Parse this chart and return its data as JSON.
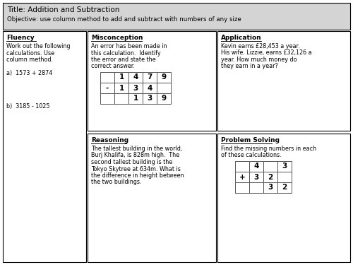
{
  "title_line1": "Title: Addition and Subtraction",
  "title_line2": "Objective: use column method to add and subtract with numbers of any size",
  "header_bg": "#d4d4d4",
  "cell_bg": "#ffffff",
  "border_color": "#000000",
  "fluency_header": "Fluency",
  "fluency_body_lines": [
    "Work out the following",
    "calculations. Use",
    "column method.",
    "",
    "a)  1573 + 2874",
    "",
    "",
    "",
    "",
    "b)  3185 - 1025"
  ],
  "misconception_header": "Misconception",
  "misconception_body_lines": [
    "An error has been made in",
    "this calculation.  Identify",
    "the error and state the",
    "correct answer."
  ],
  "misconception_table": {
    "rows": [
      [
        "",
        "1",
        "4",
        "7",
        "9"
      ],
      [
        "-",
        "1",
        "3",
        "4",
        ""
      ],
      [
        "",
        "",
        "1",
        "3",
        "9"
      ]
    ]
  },
  "application_header": "Application",
  "application_body_lines": [
    "Kevin earns £28,453 a year.",
    "His wife. Lizzie, earns £32,126 a",
    "year. How much money do",
    "they earn in a year?"
  ],
  "reasoning_header": "Reasoning",
  "reasoning_body_lines": [
    "The tallest building in the world,",
    "Burj Khalifa, is 828m high.  The",
    "second tallest building is the",
    "Tokyo Skytree at 634m. What is",
    "the difference in height between",
    "the two buildings."
  ],
  "problem_solving_header": "Problem Solving",
  "problem_solving_body_lines": [
    "Find the missing numbers in each",
    "of these calculations."
  ],
  "problem_solving_table": {
    "rows": [
      [
        "",
        "4",
        "",
        "3"
      ],
      [
        "+",
        "3",
        "2",
        ""
      ],
      [
        "",
        "",
        "3",
        "2"
      ]
    ]
  },
  "fig_width": 5.0,
  "fig_height": 3.75,
  "dpi": 100
}
